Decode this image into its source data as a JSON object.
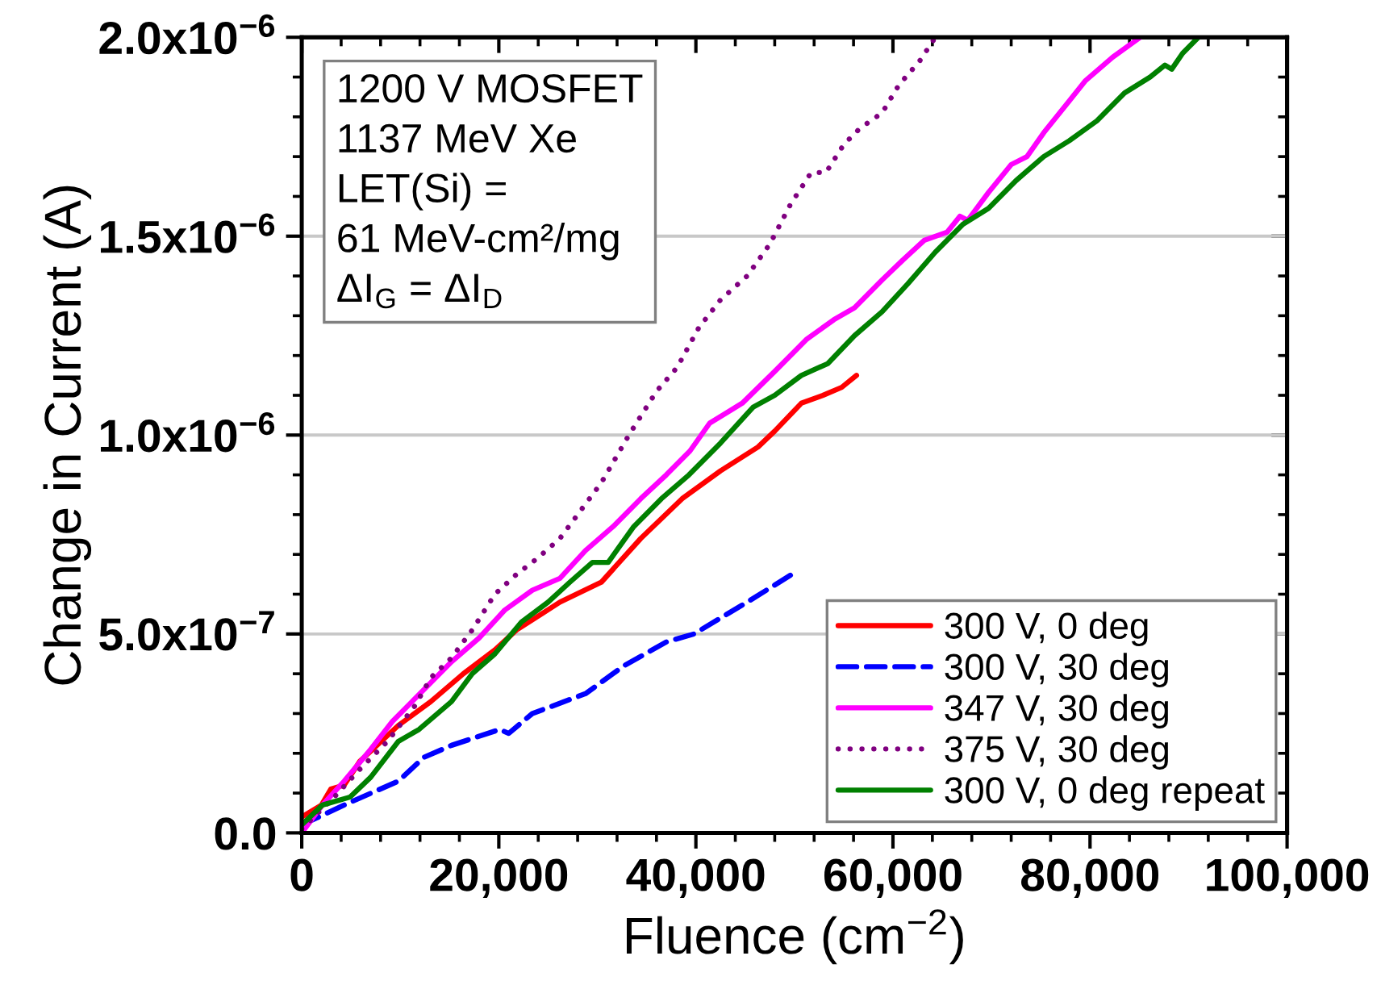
{
  "chart_data": {
    "type": "line",
    "xlabel": "Fluence (cm$^{−2}$)",
    "ylabel": "Change in Current (A)",
    "annotations": [
      "1200 V MOSFET\n1137 MeV Xe\nLET(Si) =\n61 MeV-cm²/mg\nΔI$_{G}$ = ΔI$_{D}$"
    ],
    "xlim": [
      0,
      100000
    ],
    "ylim": [
      0,
      2e-06
    ],
    "xticks": [
      0,
      {
        "value": 20000,
        "label": "20,000"
      },
      {
        "value": 40000,
        "label": "40,000"
      },
      {
        "value": 60000,
        "label": "60,000"
      },
      {
        "value": 80000,
        "label": "80,000"
      },
      {
        "value": 100000,
        "label": "100,000"
      },
      {
        "value": 4000,
        "label": null
      },
      {
        "value": 8000,
        "label": null
      },
      {
        "value": 12000,
        "label": null
      },
      {
        "value": 16000,
        "label": null
      },
      {
        "value": 24000,
        "label": null
      },
      {
        "value": 28000,
        "label": null
      },
      {
        "value": 32000,
        "label": null
      },
      {
        "value": 36000,
        "label": null
      },
      {
        "value": 44000,
        "label": null
      },
      {
        "value": 48000,
        "label": null
      },
      {
        "value": 52000,
        "label": null
      },
      {
        "value": 56000,
        "label": null
      },
      {
        "value": 64000,
        "label": null
      },
      {
        "value": 68000,
        "label": null
      },
      {
        "value": 72000,
        "label": null
      },
      {
        "value": 76000,
        "label": null
      },
      {
        "value": 84000,
        "label": null
      },
      {
        "value": 88000,
        "label": null
      },
      {
        "value": 92000,
        "label": null
      },
      {
        "value": 96000,
        "label": null
      }
    ],
    "yticks": [
      {
        "value": 0,
        "label": "0.0"
      },
      {
        "value": 5e-07,
        "label": "5.0x10$^{−7}$"
      },
      {
        "value": 1e-06,
        "label": "1.0x10$^{−6}$"
      },
      {
        "value": 1.5e-06,
        "label": "1.5x10$^{−6}$"
      },
      {
        "value": 2e-06,
        "label": "2.0x10$^{−6}$"
      },
      {
        "value": 1e-07,
        "label": null
      },
      {
        "value": 2e-07,
        "label": null
      },
      {
        "value": 3e-07,
        "label": null
      },
      {
        "value": 4e-07,
        "label": null
      },
      {
        "value": 6e-07,
        "label": null
      },
      {
        "value": 7e-07,
        "label": null
      },
      {
        "value": 8e-07,
        "label": null
      },
      {
        "value": 9e-07,
        "label": null
      },
      {
        "value": 1.1e-06,
        "label": null
      },
      {
        "value": 1.2e-06,
        "label": null
      },
      {
        "value": 1.3e-06,
        "label": null
      },
      {
        "value": 1.4e-06,
        "label": null
      },
      {
        "value": 1.6e-06,
        "label": null
      },
      {
        "value": 1.7e-06,
        "label": null
      },
      {
        "value": 1.8e-06,
        "label": null
      },
      {
        "value": 1.9e-06,
        "label": null
      }
    ],
    "grid": "y",
    "legend": "bottom right",
    "series": [
      {
        "name": "300 V, 0 deg",
        "color": "#ff0000",
        "line_style": "solid",
        "x": [
          0,
          2000,
          2950,
          4300,
          5900,
          9800,
          13100,
          16400,
          19600,
          21800,
          26200,
          30400,
          34400,
          38600,
          42500,
          46300,
          48000,
          50700,
          52900,
          54800,
          56300
        ],
        "values": [
          4e-08,
          7e-08,
          1.1e-07,
          1.2e-07,
          1.8e-07,
          2.7e-07,
          3.3e-07,
          4e-07,
          4.6e-07,
          5.1e-07,
          5.8e-07,
          6.3e-07,
          7.4e-07,
          8.4e-07,
          9.1e-07,
          9.7e-07,
          1.01e-06,
          1.08e-06,
          1.1e-06,
          1.12e-06,
          1.15e-06
        ]
      },
      {
        "name": "300 V, 30 deg",
        "color": "#0000ff",
        "line_style": "dashed",
        "x": [
          0,
          4300,
          9800,
          12400,
          15200,
          20100,
          21000,
          23400,
          28800,
          32700,
          37000,
          39800,
          42500,
          45200,
          50400
        ],
        "values": [
          2e-08,
          7e-08,
          1.3e-07,
          1.9e-07,
          2.2e-07,
          2.6e-07,
          2.5e-07,
          3e-07,
          3.5e-07,
          4.2e-07,
          4.8e-07,
          5e-07,
          5.4e-07,
          5.8e-07,
          6.6e-07
        ]
      },
      {
        "name": "347 V, 30 deg",
        "color": "#ff00ff",
        "line_style": "solid",
        "x": [
          0,
          2100,
          4300,
          7000,
          9200,
          12400,
          15200,
          18000,
          20600,
          23400,
          26200,
          28800,
          31600,
          34400,
          37000,
          39400,
          41400,
          44700,
          48000,
          51200,
          54000,
          56100,
          58900,
          61000,
          63200,
          65500,
          66800,
          67600,
          69700,
          72000,
          73600,
          75300,
          77900,
          79500,
          82300,
          85100
        ],
        "values": [
          0,
          7e-08,
          1.3e-07,
          2.1e-07,
          2.8e-07,
          3.6e-07,
          4.3e-07,
          4.9e-07,
          5.6e-07,
          6.1e-07,
          6.4e-07,
          7.1e-07,
          7.7e-07,
          8.4e-07,
          9e-07,
          9.6e-07,
          1.03e-06,
          1.08e-06,
          1.16e-06,
          1.24e-06,
          1.29e-06,
          1.32e-06,
          1.39e-06,
          1.44e-06,
          1.49e-06,
          1.51e-06,
          1.55e-06,
          1.54e-06,
          1.61e-06,
          1.68e-06,
          1.7e-06,
          1.76e-06,
          1.84e-06,
          1.89e-06,
          1.95e-06,
          2e-06
        ]
      },
      {
        "name": "375 V, 30 deg",
        "color": "#800080",
        "line_style": "dotted",
        "x": [
          0,
          3300,
          5900,
          8700,
          11500,
          13100,
          15200,
          17300,
          19600,
          21800,
          23900,
          26200,
          28300,
          30400,
          33200,
          36000,
          38100,
          40300,
          42500,
          45200,
          47500,
          49600,
          51700,
          53200,
          55000,
          56600,
          58900,
          60600,
          62700,
          64300
        ],
        "values": [
          1e-08,
          9e-08,
          1.6e-07,
          2.3e-07,
          3.2e-07,
          3.9e-07,
          4.4e-07,
          5.1e-07,
          6e-07,
          6.5e-07,
          6.9e-07,
          7.4e-07,
          8.1e-07,
          8.8e-07,
          1e-06,
          1.11e-06,
          1.17e-06,
          1.27e-06,
          1.34e-06,
          1.4e-06,
          1.48e-06,
          1.58e-06,
          1.66e-06,
          1.66e-06,
          1.73e-06,
          1.77e-06,
          1.81e-06,
          1.88e-06,
          1.94e-06,
          2e-06
        ]
      },
      {
        "name": "300 V, 0 deg repeat",
        "color": "#008000",
        "line_style": "solid",
        "x": [
          0,
          2100,
          4900,
          7000,
          9800,
          11900,
          15200,
          17300,
          19600,
          22300,
          25000,
          27200,
          29500,
          31100,
          33700,
          36500,
          39300,
          42500,
          45800,
          48000,
          50700,
          53400,
          56100,
          58900,
          61500,
          64300,
          67100,
          69700,
          72500,
          75300,
          77900,
          80700,
          83500,
          86100,
          87600,
          88300,
          89400,
          91000
        ],
        "values": [
          2e-08,
          7e-08,
          9e-08,
          1.4e-07,
          2.3e-07,
          2.6e-07,
          3.3e-07,
          4e-07,
          4.5e-07,
          5.3e-07,
          5.8e-07,
          6.3e-07,
          6.8e-07,
          6.8e-07,
          7.7e-07,
          8.4e-07,
          9e-07,
          9.8e-07,
          1.07e-06,
          1.1e-06,
          1.15e-06,
          1.18e-06,
          1.25e-06,
          1.31e-06,
          1.38e-06,
          1.46e-06,
          1.53e-06,
          1.57e-06,
          1.64e-06,
          1.7e-06,
          1.74e-06,
          1.79e-06,
          1.86e-06,
          1.9e-06,
          1.93e-06,
          1.92e-06,
          1.96e-06,
          2e-06
        ]
      }
    ]
  }
}
